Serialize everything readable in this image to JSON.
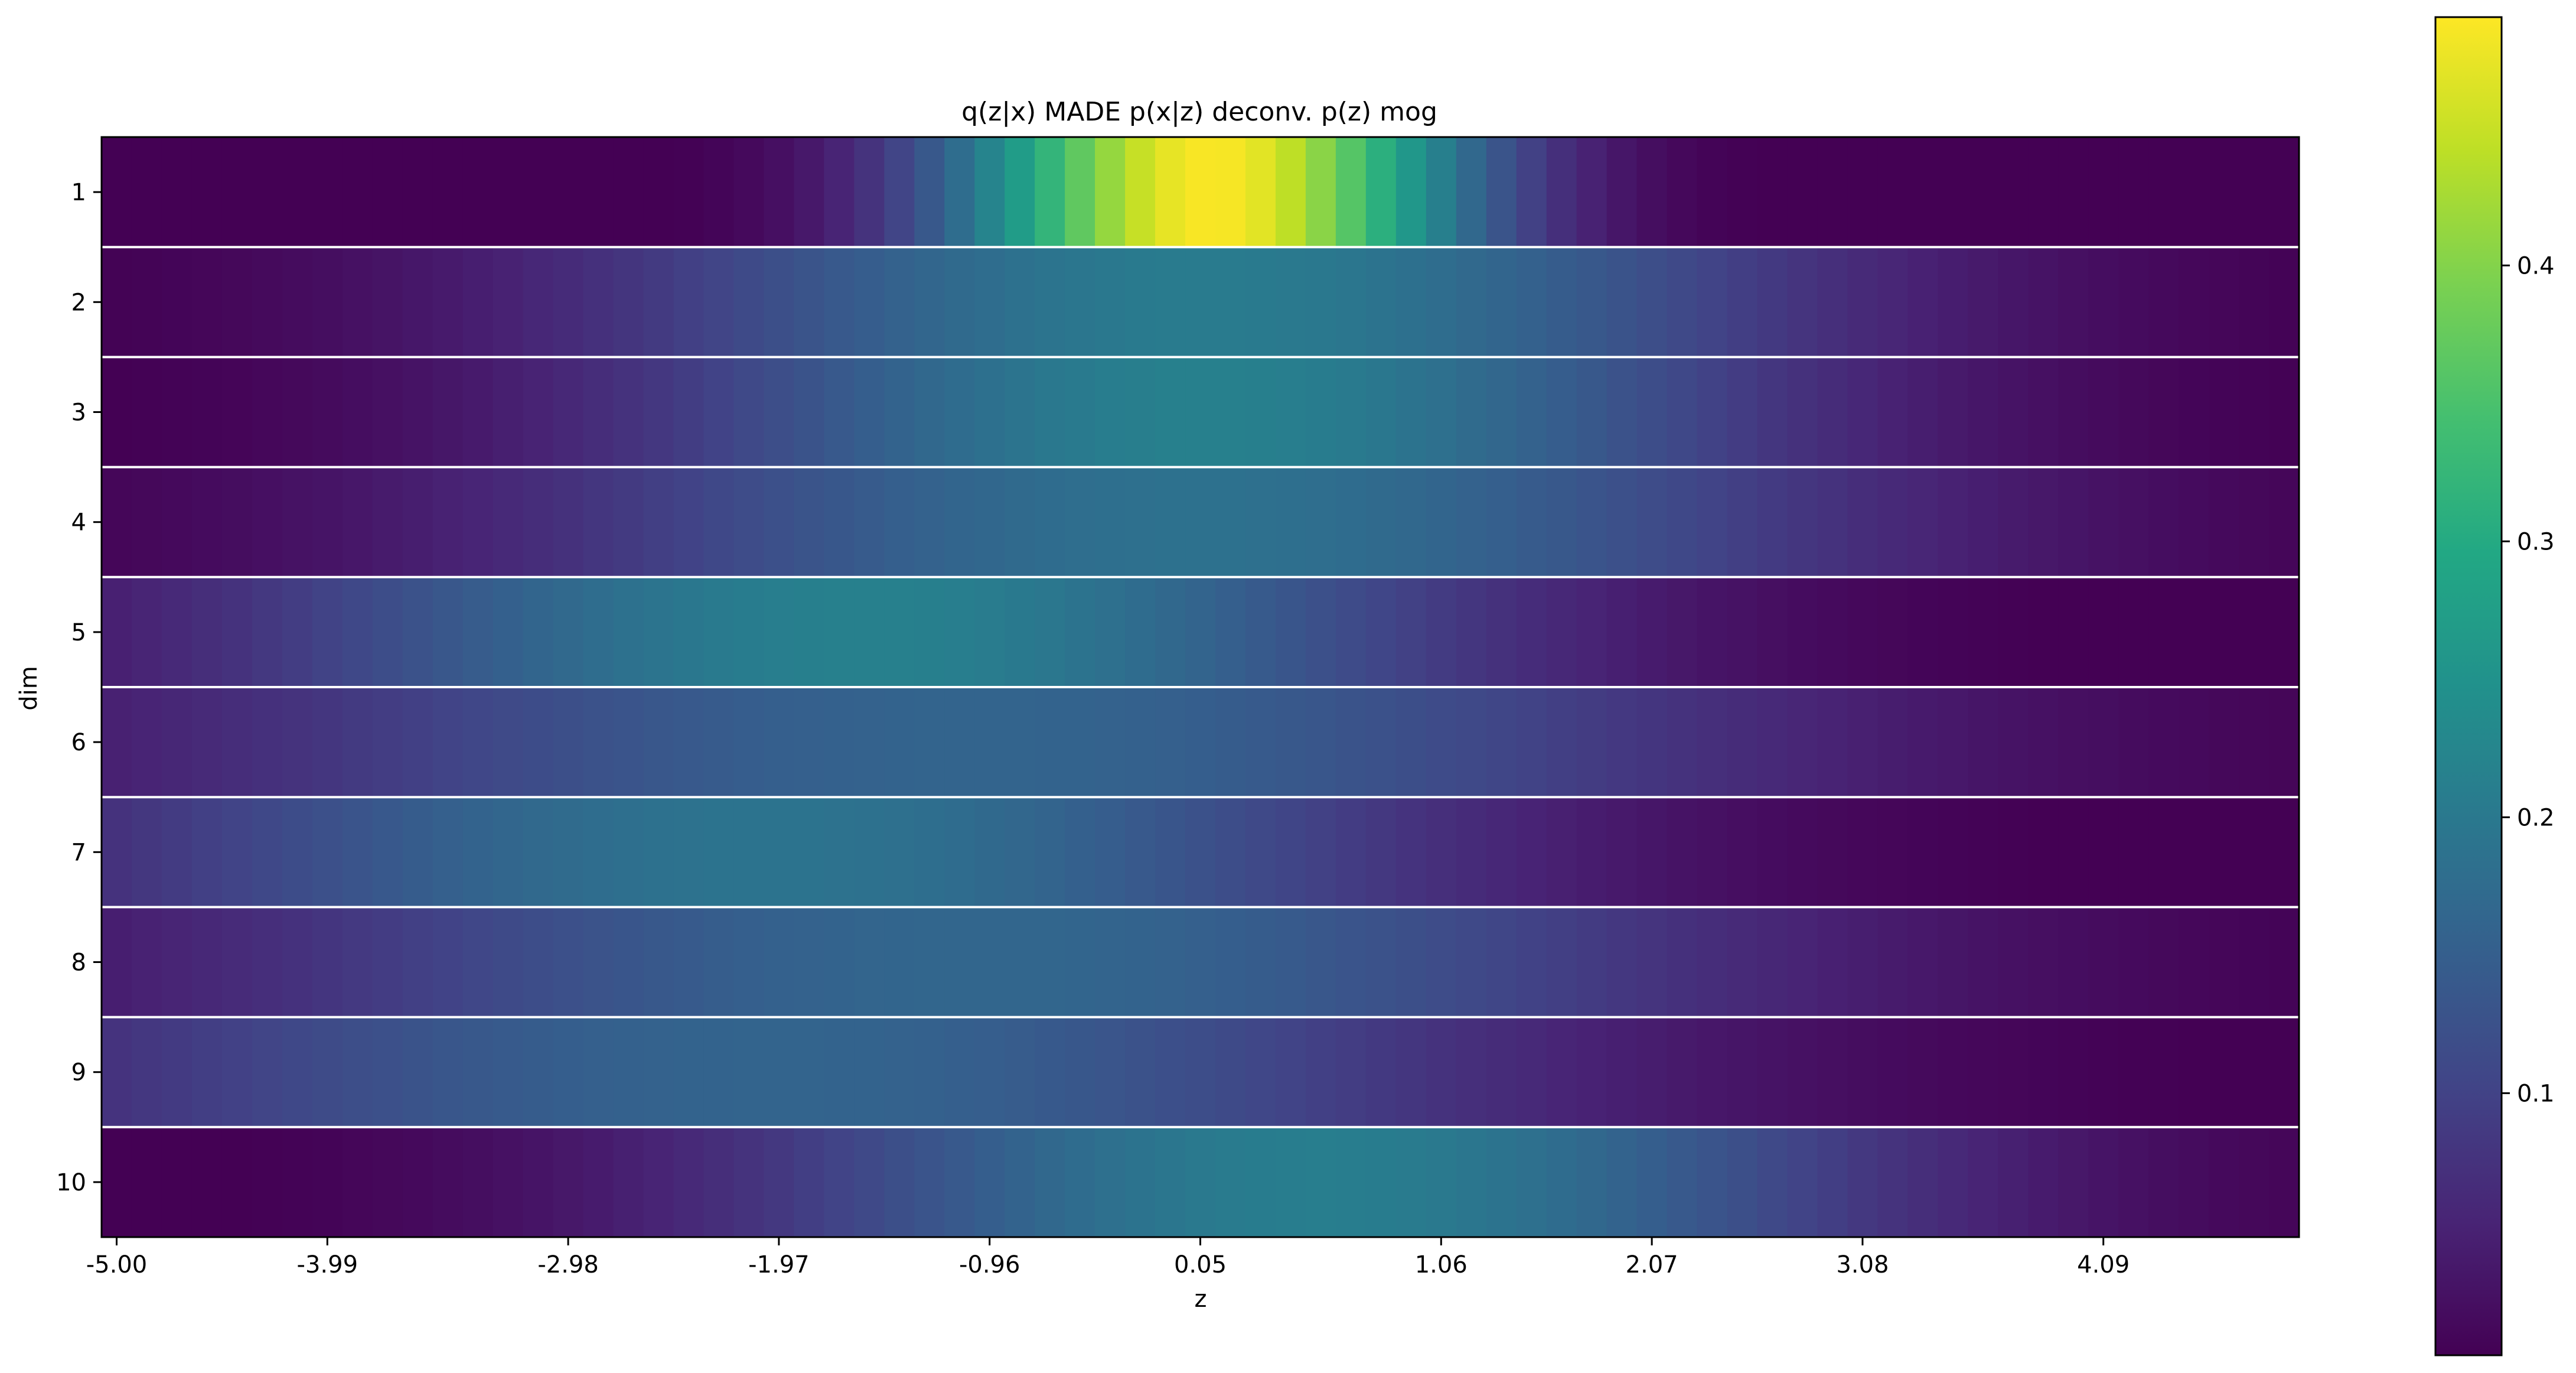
{
  "chart_data": {
    "type": "heatmap",
    "title": "q(z|x) MADE p(x|z) deconv. p(z) mog",
    "xlabel": "z",
    "ylabel": "dim",
    "colormap": "viridis",
    "color_range": [
      0.005,
      0.49
    ],
    "x_range": [
      -5.0,
      4.99
    ],
    "x_ticks": [
      "-5.00",
      "-3.99",
      "-2.98",
      "-1.97",
      "-0.96",
      "0.05",
      "1.06",
      "2.07",
      "3.08",
      "4.09"
    ],
    "y_ticks": [
      "1",
      "2",
      "3",
      "4",
      "5",
      "6",
      "7",
      "8",
      "9",
      "10"
    ],
    "colorbar_ticks": [
      "0.1",
      "0.2",
      "0.3",
      "0.4"
    ],
    "colorbar_tick_values": [
      0.1,
      0.2,
      0.3,
      0.4
    ],
    "row_separators": true,
    "rows": [
      {
        "dim": "1",
        "mu": 0.05,
        "sigma": 0.82,
        "peak": 0.487
      },
      {
        "dim": "2",
        "mu": 0.05,
        "sigma": 1.95,
        "peak": 0.205
      },
      {
        "dim": "3",
        "mu": 0.05,
        "sigma": 1.85,
        "peak": 0.215
      },
      {
        "dim": "4",
        "mu": 0.0,
        "sigma": 2.15,
        "peak": 0.185
      },
      {
        "dim": "5",
        "mu": -1.55,
        "sigma": 2.0,
        "peak": 0.215
      },
      {
        "dim": "6",
        "mu": -1.0,
        "sigma": 2.6,
        "peak": 0.16
      },
      {
        "dim": "7",
        "mu": -2.0,
        "sigma": 2.2,
        "peak": 0.19
      },
      {
        "dim": "8",
        "mu": -1.0,
        "sigma": 2.5,
        "peak": 0.165
      },
      {
        "dim": "9",
        "mu": -1.97,
        "sigma": 2.5,
        "peak": 0.16
      },
      {
        "dim": "10",
        "mu": 0.55,
        "sigma": 1.85,
        "peak": 0.21
      }
    ],
    "samples_per_row": 73
  }
}
